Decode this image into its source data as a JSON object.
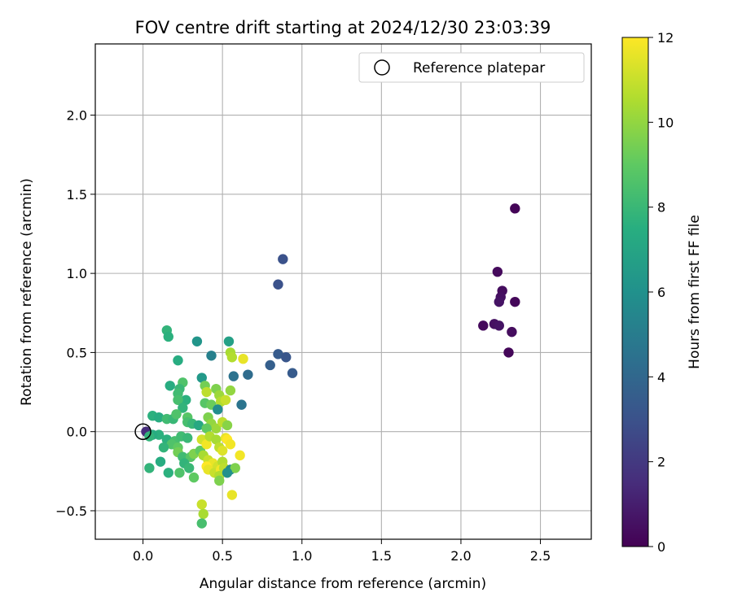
{
  "chart_data": {
    "type": "scatter",
    "title": "FOV centre drift starting at 2024/12/30 23:03:39",
    "xlabel": "Angular distance from reference (arcmin)",
    "ylabel": "Rotation from reference (arcmin)",
    "xlim": [
      -0.3,
      2.82
    ],
    "ylim": [
      -0.68,
      2.45
    ],
    "xticks": [
      0.0,
      0.5,
      1.0,
      1.5,
      2.0,
      2.5
    ],
    "xtick_labels": [
      "0.0",
      "0.5",
      "1.0",
      "1.5",
      "2.0",
      "2.5"
    ],
    "yticks": [
      -0.5,
      0.0,
      0.5,
      1.0,
      1.5,
      2.0
    ],
    "ytick_labels": [
      "−0.5",
      "0.0",
      "0.5",
      "1.0",
      "1.5",
      "2.0"
    ],
    "grid": true,
    "legend": {
      "position": "top-right",
      "entries": [
        "Reference platepar"
      ]
    },
    "colorbar": {
      "label": "Hours from first FF file",
      "min": 0,
      "max": 12,
      "ticks": [
        0,
        2,
        4,
        6,
        8,
        10,
        12
      ],
      "tick_labels": [
        "0",
        "2",
        "4",
        "6",
        "8",
        "10",
        "12"
      ],
      "colormap": "viridis"
    },
    "reference_point": {
      "x": 0.0,
      "y": 0.0
    },
    "series": [
      {
        "points": [
          {
            "x": 2.34,
            "y": 1.41,
            "c": 0.1
          },
          {
            "x": 2.23,
            "y": 1.01,
            "c": 0.3
          },
          {
            "x": 2.26,
            "y": 0.89,
            "c": 0.4
          },
          {
            "x": 2.25,
            "y": 0.85,
            "c": 0.5
          },
          {
            "x": 2.24,
            "y": 0.82,
            "c": 0.6
          },
          {
            "x": 2.34,
            "y": 0.82,
            "c": 0.2
          },
          {
            "x": 2.14,
            "y": 0.67,
            "c": 0.3
          },
          {
            "x": 2.21,
            "y": 0.68,
            "c": 0.5
          },
          {
            "x": 2.24,
            "y": 0.67,
            "c": 0.6
          },
          {
            "x": 2.32,
            "y": 0.63,
            "c": 0.4
          },
          {
            "x": 2.3,
            "y": 0.5,
            "c": 0.2
          },
          {
            "x": 0.88,
            "y": 1.09,
            "c": 3.0
          },
          {
            "x": 0.85,
            "y": 0.93,
            "c": 3.0
          },
          {
            "x": 0.85,
            "y": 0.49,
            "c": 3.4
          },
          {
            "x": 0.9,
            "y": 0.47,
            "c": 3.2
          },
          {
            "x": 0.8,
            "y": 0.42,
            "c": 3.6
          },
          {
            "x": 0.94,
            "y": 0.37,
            "c": 3.4
          },
          {
            "x": 0.66,
            "y": 0.36,
            "c": 4.2
          },
          {
            "x": 0.57,
            "y": 0.35,
            "c": 4.5
          },
          {
            "x": 0.62,
            "y": 0.17,
            "c": 4.6
          },
          {
            "x": 0.43,
            "y": 0.48,
            "c": 5.2
          },
          {
            "x": 0.34,
            "y": 0.57,
            "c": 6.2
          },
          {
            "x": 0.54,
            "y": 0.57,
            "c": 6.8
          },
          {
            "x": 0.15,
            "y": 0.64,
            "c": 7.8
          },
          {
            "x": 0.16,
            "y": 0.6,
            "c": 7.6
          },
          {
            "x": 0.22,
            "y": 0.45,
            "c": 7.4
          },
          {
            "x": 0.55,
            "y": 0.5,
            "c": 10.4
          },
          {
            "x": 0.56,
            "y": 0.47,
            "c": 10.6
          },
          {
            "x": 0.63,
            "y": 0.46,
            "c": 11.6
          },
          {
            "x": 0.37,
            "y": 0.34,
            "c": 6.4
          },
          {
            "x": 0.39,
            "y": 0.29,
            "c": 9.4
          },
          {
            "x": 0.4,
            "y": 0.25,
            "c": 10.8
          },
          {
            "x": 0.17,
            "y": 0.29,
            "c": 7.4
          },
          {
            "x": 0.25,
            "y": 0.31,
            "c": 8.6
          },
          {
            "x": 0.23,
            "y": 0.27,
            "c": 8.0
          },
          {
            "x": 0.22,
            "y": 0.24,
            "c": 8.2
          },
          {
            "x": 0.46,
            "y": 0.27,
            "c": 9.6
          },
          {
            "x": 0.48,
            "y": 0.23,
            "c": 10.2
          },
          {
            "x": 0.55,
            "y": 0.26,
            "c": 10.0
          },
          {
            "x": 0.27,
            "y": 0.2,
            "c": 7.6
          },
          {
            "x": 0.22,
            "y": 0.2,
            "c": 8.4
          },
          {
            "x": 0.39,
            "y": 0.18,
            "c": 8.8
          },
          {
            "x": 0.43,
            "y": 0.17,
            "c": 9.2
          },
          {
            "x": 0.49,
            "y": 0.19,
            "c": 10.6
          },
          {
            "x": 0.52,
            "y": 0.2,
            "c": 11.0
          },
          {
            "x": 0.47,
            "y": 0.14,
            "c": 5.8
          },
          {
            "x": 0.25,
            "y": 0.15,
            "c": 7.8
          },
          {
            "x": 0.06,
            "y": 0.1,
            "c": 7.6
          },
          {
            "x": 0.1,
            "y": 0.09,
            "c": 7.4
          },
          {
            "x": 0.15,
            "y": 0.08,
            "c": 8.2
          },
          {
            "x": 0.19,
            "y": 0.08,
            "c": 8.0
          },
          {
            "x": 0.21,
            "y": 0.11,
            "c": 8.6
          },
          {
            "x": 0.28,
            "y": 0.09,
            "c": 8.8
          },
          {
            "x": 0.28,
            "y": 0.06,
            "c": 8.4
          },
          {
            "x": 0.31,
            "y": 0.05,
            "c": 8.0
          },
          {
            "x": 0.35,
            "y": 0.04,
            "c": 7.2
          },
          {
            "x": 0.41,
            "y": 0.09,
            "c": 9.6
          },
          {
            "x": 0.43,
            "y": 0.05,
            "c": 10.0
          },
          {
            "x": 0.46,
            "y": 0.02,
            "c": 10.2
          },
          {
            "x": 0.5,
            "y": 0.06,
            "c": 10.8
          },
          {
            "x": 0.53,
            "y": 0.04,
            "c": 9.8
          },
          {
            "x": 0.4,
            "y": 0.02,
            "c": 9.0
          },
          {
            "x": 0.02,
            "y": 0.0,
            "c": 1.5
          },
          {
            "x": 0.1,
            "y": -0.02,
            "c": 7.6
          },
          {
            "x": 0.06,
            "y": -0.02,
            "c": 7.4
          },
          {
            "x": 0.04,
            "y": -0.03,
            "c": 7.8
          },
          {
            "x": 0.15,
            "y": -0.05,
            "c": 7.6
          },
          {
            "x": 0.2,
            "y": -0.06,
            "c": 8.4
          },
          {
            "x": 0.24,
            "y": -0.03,
            "c": 8.2
          },
          {
            "x": 0.28,
            "y": -0.04,
            "c": 8.0
          },
          {
            "x": 0.18,
            "y": -0.08,
            "c": 8.6
          },
          {
            "x": 0.13,
            "y": -0.1,
            "c": 7.8
          },
          {
            "x": 0.22,
            "y": -0.1,
            "c": 9.0
          },
          {
            "x": 0.22,
            "y": -0.13,
            "c": 9.4
          },
          {
            "x": 0.25,
            "y": -0.16,
            "c": 8.2
          },
          {
            "x": 0.3,
            "y": -0.16,
            "c": 8.8
          },
          {
            "x": 0.32,
            "y": -0.14,
            "c": 9.6
          },
          {
            "x": 0.36,
            "y": -0.12,
            "c": 9.0
          },
          {
            "x": 0.37,
            "y": -0.05,
            "c": 11.2
          },
          {
            "x": 0.4,
            "y": -0.08,
            "c": 11.8
          },
          {
            "x": 0.42,
            "y": -0.03,
            "c": 10.6
          },
          {
            "x": 0.46,
            "y": -0.05,
            "c": 10.4
          },
          {
            "x": 0.48,
            "y": -0.1,
            "c": 10.8
          },
          {
            "x": 0.5,
            "y": -0.12,
            "c": 11.4
          },
          {
            "x": 0.52,
            "y": -0.04,
            "c": 11.6
          },
          {
            "x": 0.53,
            "y": -0.05,
            "c": 12.0
          },
          {
            "x": 0.55,
            "y": -0.08,
            "c": 11.8
          },
          {
            "x": 0.38,
            "y": -0.15,
            "c": 10.4
          },
          {
            "x": 0.41,
            "y": -0.18,
            "c": 11.0
          },
          {
            "x": 0.44,
            "y": -0.2,
            "c": 11.6
          },
          {
            "x": 0.47,
            "y": -0.22,
            "c": 11.2
          },
          {
            "x": 0.5,
            "y": -0.19,
            "c": 10.6
          },
          {
            "x": 0.4,
            "y": -0.22,
            "c": 12.0
          },
          {
            "x": 0.41,
            "y": -0.24,
            "c": 11.6
          },
          {
            "x": 0.45,
            "y": -0.26,
            "c": 11.0
          },
          {
            "x": 0.49,
            "y": -0.24,
            "c": 11.8
          },
          {
            "x": 0.51,
            "y": -0.23,
            "c": 10.8
          },
          {
            "x": 0.55,
            "y": -0.24,
            "c": 5.6
          },
          {
            "x": 0.58,
            "y": -0.23,
            "c": 9.6
          },
          {
            "x": 0.61,
            "y": -0.15,
            "c": 11.8
          },
          {
            "x": 0.26,
            "y": -0.2,
            "c": 7.8
          },
          {
            "x": 0.29,
            "y": -0.23,
            "c": 8.0
          },
          {
            "x": 0.23,
            "y": -0.26,
            "c": 8.6
          },
          {
            "x": 0.16,
            "y": -0.26,
            "c": 7.6
          },
          {
            "x": 0.11,
            "y": -0.19,
            "c": 7.4
          },
          {
            "x": 0.04,
            "y": -0.23,
            "c": 7.8
          },
          {
            "x": 0.32,
            "y": -0.29,
            "c": 9.0
          },
          {
            "x": 0.48,
            "y": -0.28,
            "c": 10.6
          },
          {
            "x": 0.48,
            "y": -0.31,
            "c": 9.6
          },
          {
            "x": 0.37,
            "y": -0.46,
            "c": 11.0
          },
          {
            "x": 0.38,
            "y": -0.52,
            "c": 10.4
          },
          {
            "x": 0.37,
            "y": -0.58,
            "c": 8.4
          },
          {
            "x": 0.56,
            "y": -0.4,
            "c": 11.6
          },
          {
            "x": 0.53,
            "y": -0.26,
            "c": 6.0
          }
        ]
      }
    ]
  }
}
